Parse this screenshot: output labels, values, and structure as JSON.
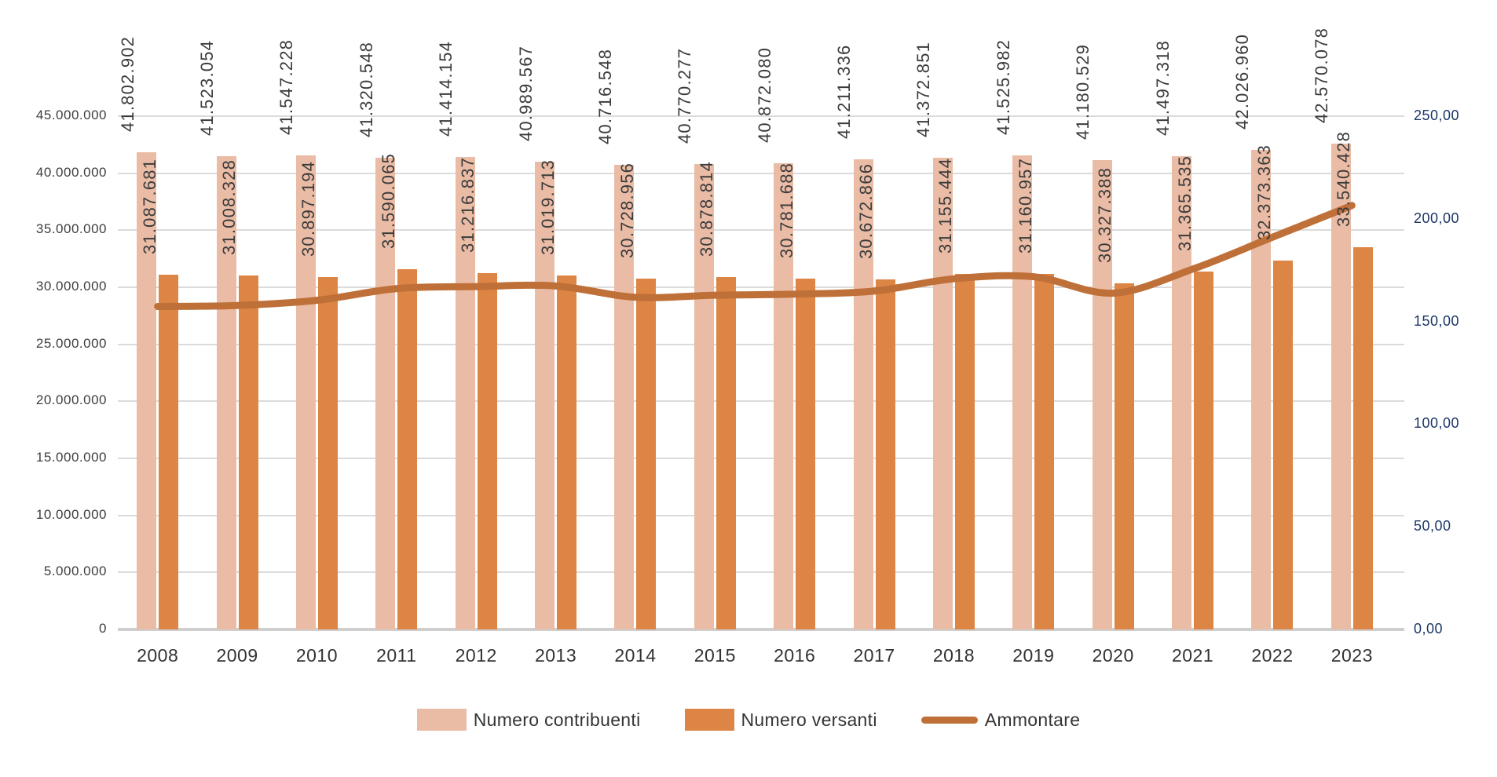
{
  "page": {
    "background": "#FFFFFF",
    "title": ""
  },
  "chart_data": {
    "type": "bar",
    "subtype": "combo-bar-line",
    "title": "",
    "categories": [
      "2008",
      "2009",
      "2010",
      "2011",
      "2012",
      "2013",
      "2014",
      "2015",
      "2016",
      "2017",
      "2018",
      "2019",
      "2020",
      "2021",
      "2022",
      "2023"
    ],
    "series": [
      {
        "name": "Numero contribuenti",
        "type": "bar",
        "axis": "left",
        "color": "#EABCA6",
        "values": [
          41802902,
          41523054,
          41547228,
          41320548,
          41414154,
          40989567,
          40716548,
          40770277,
          40872080,
          41211336,
          41372851,
          41525982,
          41180529,
          41497318,
          42026960,
          42570078
        ],
        "labels": [
          "41.802.902",
          "41.523.054",
          "41.547.228",
          "41.320.548",
          "41.414.154",
          "40.989.567",
          "40.716.548",
          "40.770.277",
          "40.872.080",
          "41.211.336",
          "41.372.851",
          "41.525.982",
          "41.180.529",
          "41.497.318",
          "42.026.960",
          "42.570.078"
        ]
      },
      {
        "name": "Numero versanti",
        "type": "bar",
        "axis": "left",
        "color": "#DD8544",
        "values": [
          31087681,
          31008328,
          30897194,
          31590065,
          31216837,
          31019713,
          30728956,
          30878814,
          30781688,
          30672866,
          31155444,
          31160957,
          30327388,
          31365535,
          32373363,
          33540428
        ],
        "labels": [
          "31.087.681",
          "31.008.328",
          "30.897.194",
          "31.590.065",
          "31.216.837",
          "31.019.713",
          "30.728.956",
          "30.878.814",
          "30.781.688",
          "30.672.866",
          "31.155.444",
          "31.160.957",
          "30.327.388",
          "31.365.535",
          "32.373.363",
          "33.540.428"
        ]
      },
      {
        "name": "Ammontare",
        "type": "line",
        "axis": "right",
        "color": "#BF7038",
        "values": [
          157.3,
          157.8,
          160.3,
          166.0,
          167.0,
          167.3,
          161.8,
          162.8,
          163.3,
          164.8,
          170.8,
          171.8,
          163.8,
          175.5,
          191.0,
          206.5
        ]
      }
    ],
    "left_axis": {
      "min": 0,
      "max": 45000000,
      "step": 5000000,
      "tick_labels": [
        "0",
        "5.000.000",
        "10.000.000",
        "15.000.000",
        "20.000.000",
        "25.000.000",
        "30.000.000",
        "35.000.000",
        "40.000.000",
        "45.000.000"
      ]
    },
    "right_axis": {
      "min": 0,
      "max": 250,
      "step": 50,
      "tick_labels": [
        "0,00",
        "50,00",
        "100,00",
        "150,00",
        "200,00",
        "250,00"
      ]
    },
    "grid": "horizontal-on",
    "legend_position": "bottom"
  },
  "legend": {
    "items": [
      {
        "label": "Numero contribuenti",
        "swatch": "bar",
        "color": "#EABCA6"
      },
      {
        "label": "Numero versanti",
        "swatch": "bar",
        "color": "#DD8544"
      },
      {
        "label": "Ammontare",
        "swatch": "line",
        "color": "#BF7038"
      }
    ]
  },
  "colors": {
    "axis_text": "#3E3E3E",
    "right_axis_text": "#1B3666",
    "category_text": "#323232",
    "data_label_text": "#3B3B3B",
    "gridline": "#DBDBDB",
    "baseline": "#CFCFCF",
    "bar_contribuenti": "#EABCA6",
    "bar_versanti": "#DD8544",
    "line_ammontare": "#BF7038"
  }
}
